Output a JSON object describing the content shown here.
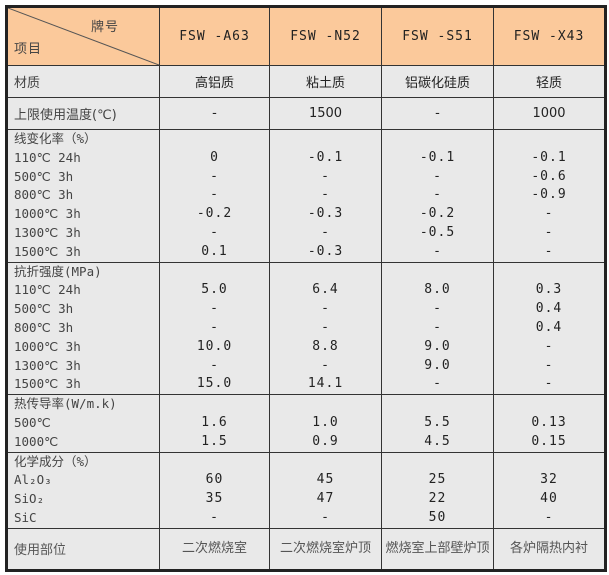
{
  "header": {
    "corner_top": "牌号",
    "corner_bottom": "项目",
    "grades": [
      "FSW -A63",
      "FSW -N52",
      "FSW -S51",
      "FSW -X43"
    ]
  },
  "colors": {
    "header_bg": "#fbc99b",
    "body_bg": "#e9e9e9"
  },
  "material": {
    "label": "材质",
    "values": [
      "高铝质",
      "粘土质",
      "铝碳化硅质",
      "轻质"
    ]
  },
  "max_temp": {
    "label": "上限使用温度(℃)",
    "values": [
      "-",
      "1500",
      "-",
      "1000"
    ]
  },
  "linear_change": {
    "rows": [
      {
        "label": "线变化率（%）",
        "values": [
          "",
          "",
          "",
          ""
        ]
      },
      {
        "label": "110℃  24h",
        "values": [
          "0",
          "-0.1",
          "-0.1",
          "-0.1"
        ]
      },
      {
        "label": "500℃    3h",
        "values": [
          "-",
          "-",
          "-",
          "-0.6"
        ]
      },
      {
        "label": "800℃    3h",
        "values": [
          "-",
          "-",
          "-",
          "-0.9"
        ]
      },
      {
        "label": "1000℃   3h",
        "values": [
          "-0.2",
          "-0.3",
          "-0.2",
          "-"
        ]
      },
      {
        "label": "1300℃   3h",
        "values": [
          "-",
          "-",
          "-0.5",
          "-"
        ]
      },
      {
        "label": "1500℃   3h",
        "values": [
          "0.1",
          "-0.3",
          "-",
          "-"
        ]
      }
    ]
  },
  "bending_strength": {
    "rows": [
      {
        "label": "抗折强度(MPa)",
        "values": [
          "",
          "",
          "",
          ""
        ]
      },
      {
        "label": "110℃  24h",
        "values": [
          "5.0",
          "6.4",
          "8.0",
          "0.3"
        ]
      },
      {
        "label": "500℃    3h",
        "values": [
          "-",
          "-",
          "-",
          "0.4"
        ]
      },
      {
        "label": "800℃    3h",
        "values": [
          "-",
          "-",
          "-",
          "0.4"
        ]
      },
      {
        "label": "1000℃   3h",
        "values": [
          "10.0",
          "8.8",
          "9.0",
          "-"
        ]
      },
      {
        "label": "1300℃   3h",
        "values": [
          "-",
          "-",
          "9.0",
          "-"
        ]
      },
      {
        "label": "1500℃   3h",
        "values": [
          "15.0",
          "14.1",
          "-",
          "-"
        ]
      }
    ]
  },
  "thermal_conductivity": {
    "rows": [
      {
        "label": "热传导率(W/m.k)",
        "values": [
          "",
          "",
          "",
          ""
        ]
      },
      {
        "label": "500℃",
        "values": [
          "1.6",
          "1.0",
          "5.5",
          "0.13"
        ]
      },
      {
        "label": "1000℃",
        "values": [
          "1.5",
          "0.9",
          "4.5",
          "0.15"
        ]
      }
    ]
  },
  "chemical": {
    "rows": [
      {
        "label": "化学成分（%）",
        "values": [
          "",
          "",
          "",
          ""
        ]
      },
      {
        "label": "Al₂O₃",
        "values": [
          "60",
          "45",
          "25",
          "32"
        ]
      },
      {
        "label": "SiO₂",
        "values": [
          "35",
          "47",
          "22",
          "40"
        ]
      },
      {
        "label": "SiC",
        "values": [
          "-",
          "-",
          "50",
          "-"
        ]
      }
    ]
  },
  "usage": {
    "label": "使用部位",
    "values": [
      "二次燃烧室",
      "二次燃烧室炉顶",
      "燃烧室上部壁炉顶",
      "各炉隔热内衬"
    ]
  }
}
